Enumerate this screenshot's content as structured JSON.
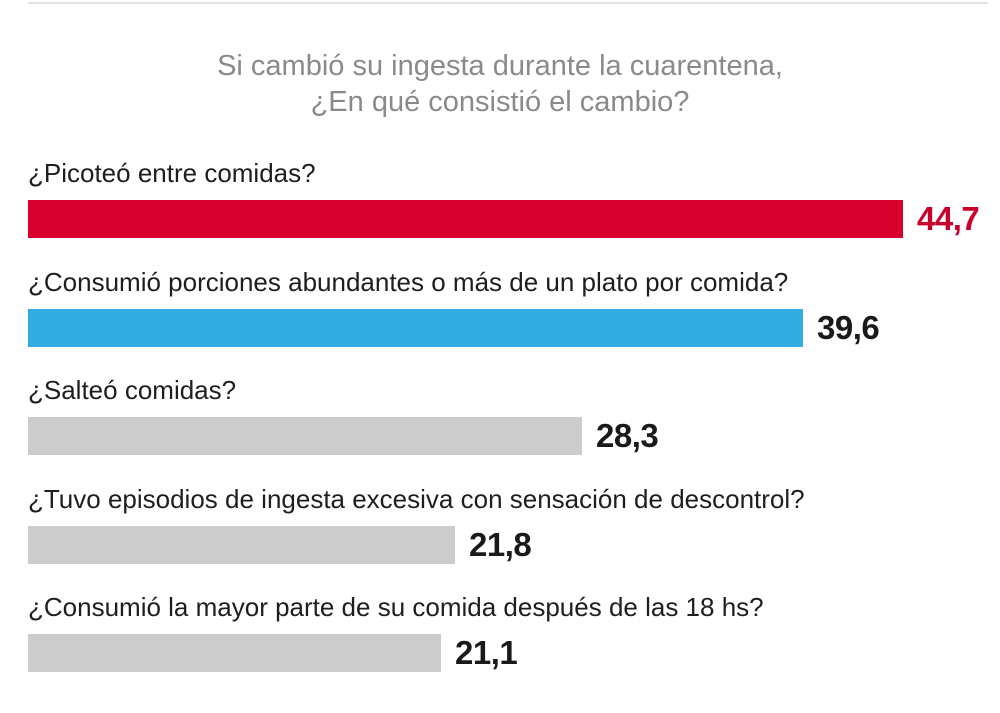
{
  "title_lines": [
    "Si cambió su ingesta durante la cuarentena,",
    "¿En qué consistió el cambio?"
  ],
  "colors": {
    "highlight_red": "#d7012e",
    "highlight_blue": "#33ace2",
    "default_gray": "#cccccc",
    "value_red": "#c8002c",
    "value_dark": "#1a1a1a"
  },
  "chart_data": {
    "type": "bar",
    "orientation": "horizontal",
    "title": "Si cambió su ingesta durante la cuarentena, ¿En qué consistió el cambio?",
    "categories": [
      "¿Picoteó entre comidas?",
      "¿Consumió porciones abundantes o más de un plato por comida?",
      "¿Salteó comidas?",
      "¿Tuvo episodios de ingesta excesiva con sensación de descontrol?",
      "¿Consumió la mayor parte de su comida después de las 18 hs?"
    ],
    "values": [
      44.7,
      39.6,
      28.3,
      21.8,
      21.1
    ],
    "value_labels": [
      "44,7",
      "39,6",
      "28,3",
      "21,8",
      "21,1"
    ],
    "bar_colors": [
      "#d7012e",
      "#33ace2",
      "#cccccc",
      "#cccccc",
      "#cccccc"
    ],
    "value_label_colors": [
      "#c8002c",
      "#1a1a1a",
      "#1a1a1a",
      "#1a1a1a",
      "#1a1a1a"
    ],
    "xlim": [
      0,
      44.7
    ],
    "grid": false,
    "legend": "none"
  }
}
